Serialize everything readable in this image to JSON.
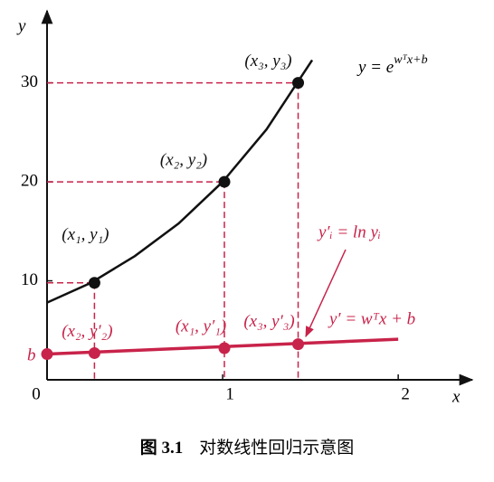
{
  "chart_data": {
    "type": "line",
    "xlabel": "x",
    "ylabel": "y",
    "xlim": [
      0,
      2.36
    ],
    "ylim": [
      0,
      37
    ],
    "xticks": [
      0,
      1,
      2
    ],
    "yticks": [
      10,
      20,
      30
    ],
    "series": [
      {
        "color": "#111111",
        "x": [
          0,
          0.25,
          0.5,
          0.75,
          1,
          1.25,
          1.51
        ],
        "values": [
          7.8,
          9.8,
          12.5,
          15.8,
          20,
          25.3,
          32.3
        ]
      },
      {
        "color": "#c8234a",
        "x": [
          0,
          2
        ],
        "values": [
          2.6,
          4.1
        ]
      }
    ],
    "points": [
      {
        "color": "#111111",
        "x": [
          0.27,
          1.01,
          1.43
        ],
        "values": [
          9.8,
          20,
          30
        ],
        "labels": [
          "(x₁, y₁)",
          "(x₂, y₂)",
          "(x₃, y₃)"
        ]
      },
      {
        "color": "#c8234a",
        "x": [
          0,
          0.27,
          1.01,
          1.43
        ],
        "values": [
          2.6,
          2.7,
          3.2,
          3.6
        ],
        "labels": [
          null,
          "(x₂, y′₂)",
          "(x₁, y′₁)",
          "(x₃, y′₃)"
        ]
      }
    ],
    "annotations": {
      "curve_base": "y = e",
      "curve_sup": "wᵀx+b",
      "log": "y′ᵢ = ln yᵢ",
      "line": "y′ = wᵀx + b",
      "intercept": "b"
    },
    "caption": {
      "number": "图 3.1",
      "text": "对数线性回归示意图"
    }
  }
}
